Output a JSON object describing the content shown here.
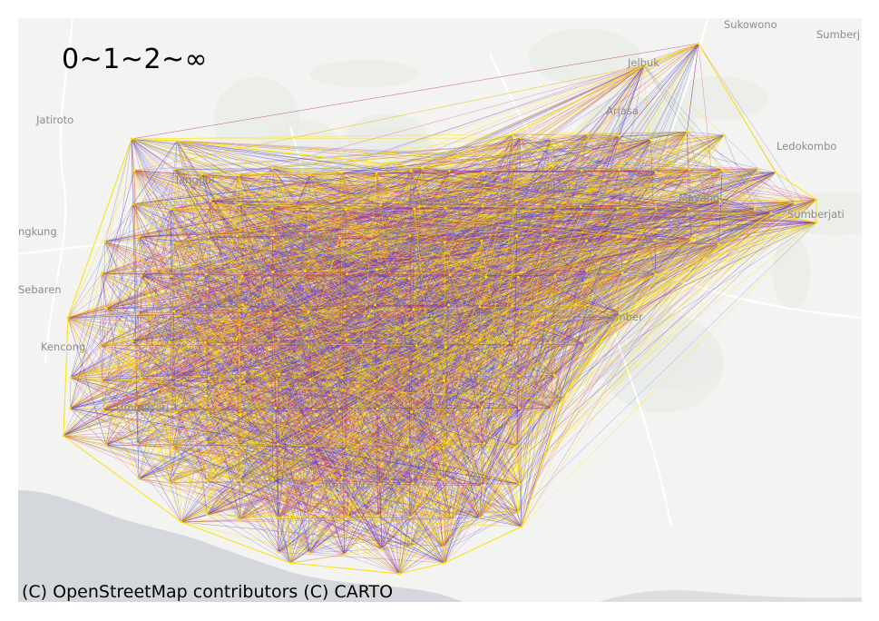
{
  "title": "0~1~2~∞",
  "attribution": "(C) OpenStreetMap contributors (C) CARTO",
  "place_labels": [
    "Sukowono",
    "Sumberj",
    "Jelbuk",
    "Jatiroto",
    "Arjasa",
    "Ledokombo",
    "Tanggul",
    "Sumberjati",
    "ngkung",
    "Sebaren",
    "Kencong",
    "Umbulsari",
    "Balung",
    "Ambulu",
    "Jenggawah",
    "Mayang",
    "Kalisat",
    "Jember",
    "Rambipuji",
    "Kaliwates"
  ],
  "colors": {
    "sea": "#d4d7db",
    "land": "#f3f3f1",
    "edge_yellow": "#ffe100",
    "edge_red": "#e0204a",
    "edge_purple": "#9b30b0",
    "edge_blue": "#3344ee"
  }
}
